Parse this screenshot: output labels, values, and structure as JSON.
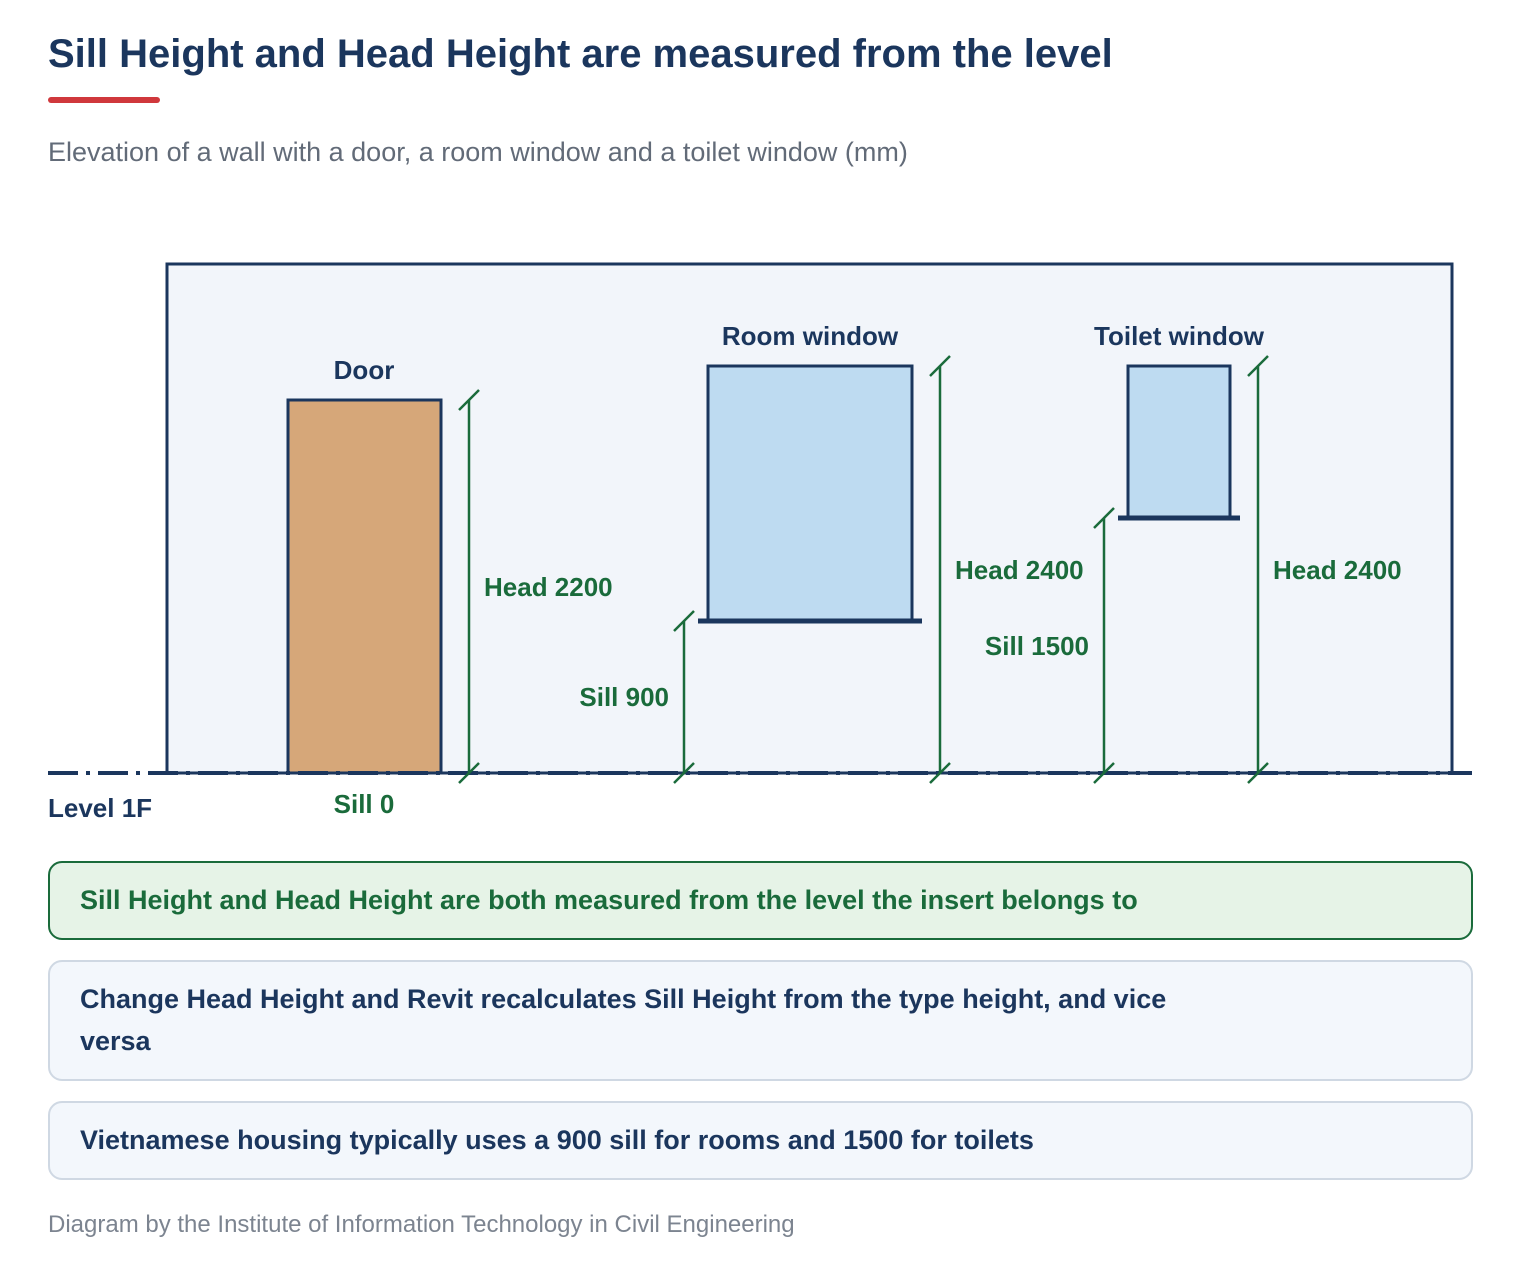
{
  "title": "Sill Height and Head Height are measured from the level",
  "subtitle": "Elevation of a wall with a door, a room window and a toilet window (mm)",
  "level": {
    "label": "Level 1F"
  },
  "elements": {
    "door": {
      "label": "Door",
      "sill_label": "Sill 0",
      "head_label": "Head 2200",
      "sill": 0,
      "head": 2200
    },
    "room_window": {
      "label": "Room window",
      "sill_label": "Sill 900",
      "head_label": "Head 2400",
      "sill": 900,
      "head": 2400
    },
    "toilet_window": {
      "label": "Toilet window",
      "sill_label": "Sill 1500",
      "head_label": "Head 2400",
      "sill": 1500,
      "head": 2400
    }
  },
  "colors": {
    "wall_fill": "#f2f5fa",
    "wall_stroke": "#1b365d",
    "door_fill": "#d6a779",
    "window_fill": "#bedbf1",
    "dimension": "#1a6b3b",
    "accent": "#d0383c"
  },
  "notes": [
    "Sill Height and Head Height are both measured from the level the insert belongs to",
    "Change Head Height and Revit recalculates Sill Height from the type height, and vice versa",
    "Vietnamese housing typically uses a 900 sill for rooms and 1500 for toilets"
  ],
  "footer": "Diagram by the Institute of Information Technology in Civil Engineering"
}
